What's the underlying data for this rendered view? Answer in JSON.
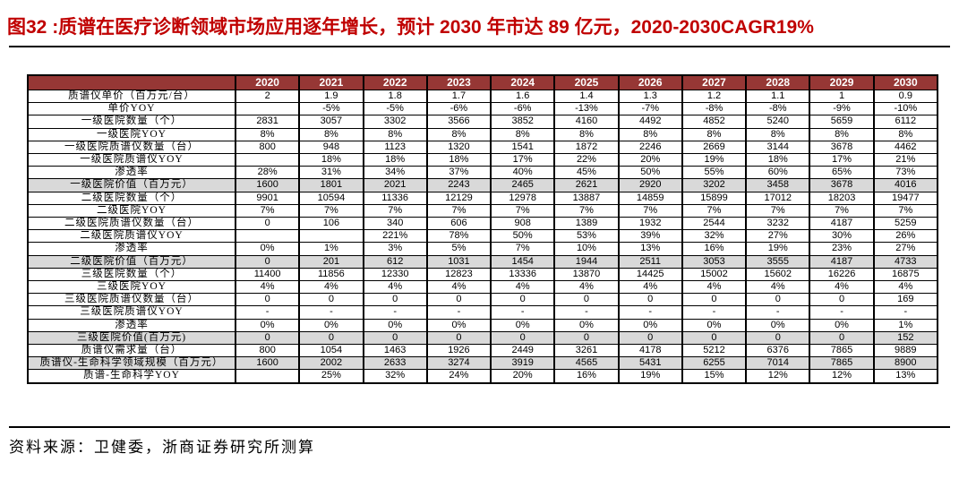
{
  "title": {
    "text": "图32 :质谱在医疗诊断领域市场应用逐年增长，预计 2030 年市达 89 亿元，2020-2030CAGR19%"
  },
  "footer": {
    "source": "资料来源：卫健委，浙商证券研究所测算"
  },
  "colors": {
    "title_red": "#C00000",
    "header_bg": "#963735",
    "header_text": "#FFFFFF",
    "shaded_row": "#D9D9D9",
    "border": "#000000"
  },
  "chart_data": {
    "type": "table",
    "title": "质谱在医疗诊断领域市场测算 2020-2030",
    "columns": [
      "2020",
      "2021",
      "2022",
      "2023",
      "2024",
      "2025",
      "2026",
      "2027",
      "2028",
      "2029",
      "2030"
    ],
    "rows": [
      {
        "label": "质谱仪单价（百万元/台）",
        "shaded": false,
        "values": [
          "2",
          "1.9",
          "1.8",
          "1.7",
          "1.6",
          "1.4",
          "1.3",
          "1.2",
          "1.1",
          "1",
          "0.9"
        ]
      },
      {
        "label": "单价YOY",
        "shaded": false,
        "values": [
          "",
          "-5%",
          "-5%",
          "-6%",
          "-6%",
          "-13%",
          "-7%",
          "-8%",
          "-8%",
          "-9%",
          "-10%"
        ]
      },
      {
        "label": "一级医院数量（个）",
        "shaded": false,
        "values": [
          "2831",
          "3057",
          "3302",
          "3566",
          "3852",
          "4160",
          "4492",
          "4852",
          "5240",
          "5659",
          "6112"
        ]
      },
      {
        "label": "一级医院YOY",
        "shaded": false,
        "values": [
          "8%",
          "8%",
          "8%",
          "8%",
          "8%",
          "8%",
          "8%",
          "8%",
          "8%",
          "8%",
          "8%"
        ]
      },
      {
        "label": "一级医院质谱仪数量（台）",
        "shaded": false,
        "values": [
          "800",
          "948",
          "1123",
          "1320",
          "1541",
          "1872",
          "2246",
          "2669",
          "3144",
          "3678",
          "4462"
        ]
      },
      {
        "label": "一级医院质谱仪YOY",
        "shaded": false,
        "values": [
          "",
          "18%",
          "18%",
          "18%",
          "17%",
          "22%",
          "20%",
          "19%",
          "18%",
          "17%",
          "21%"
        ]
      },
      {
        "label": "渗透率",
        "shaded": false,
        "values": [
          "28%",
          "31%",
          "34%",
          "37%",
          "40%",
          "45%",
          "50%",
          "55%",
          "60%",
          "65%",
          "73%"
        ]
      },
      {
        "label": "一级医院价值（百万元）",
        "shaded": true,
        "values": [
          "1600",
          "1801",
          "2021",
          "2243",
          "2465",
          "2621",
          "2920",
          "3202",
          "3458",
          "3678",
          "4016"
        ]
      },
      {
        "label": "二级医院数量（个）",
        "shaded": false,
        "values": [
          "9901",
          "10594",
          "11336",
          "12129",
          "12978",
          "13887",
          "14859",
          "15899",
          "17012",
          "18203",
          "19477"
        ]
      },
      {
        "label": "二级医院YOY",
        "shaded": false,
        "values": [
          "7%",
          "7%",
          "7%",
          "7%",
          "7%",
          "7%",
          "7%",
          "7%",
          "7%",
          "7%",
          "7%"
        ]
      },
      {
        "label": "二级医院质谱仪数量（台）",
        "shaded": false,
        "values": [
          "0",
          "106",
          "340",
          "606",
          "908",
          "1389",
          "1932",
          "2544",
          "3232",
          "4187",
          "5259"
        ]
      },
      {
        "label": "二级医院质谱仪YOY",
        "shaded": false,
        "values": [
          "",
          "",
          "221%",
          "78%",
          "50%",
          "53%",
          "39%",
          "32%",
          "27%",
          "30%",
          "26%"
        ]
      },
      {
        "label": "渗透率",
        "shaded": false,
        "values": [
          "0%",
          "1%",
          "3%",
          "5%",
          "7%",
          "10%",
          "13%",
          "16%",
          "19%",
          "23%",
          "27%"
        ]
      },
      {
        "label": "二级医院价值（百万元）",
        "shaded": true,
        "values": [
          "0",
          "201",
          "612",
          "1031",
          "1454",
          "1944",
          "2511",
          "3053",
          "3555",
          "4187",
          "4733"
        ]
      },
      {
        "label": "三级医院数量（个）",
        "shaded": false,
        "values": [
          "11400",
          "11856",
          "12330",
          "12823",
          "13336",
          "13870",
          "14425",
          "15002",
          "15602",
          "16226",
          "16875"
        ]
      },
      {
        "label": "三级医院YOY",
        "shaded": false,
        "values": [
          "4%",
          "4%",
          "4%",
          "4%",
          "4%",
          "4%",
          "4%",
          "4%",
          "4%",
          "4%",
          "4%"
        ]
      },
      {
        "label": "三级医院质谱仪数量（台）",
        "shaded": false,
        "values": [
          "0",
          "0",
          "0",
          "0",
          "0",
          "0",
          "0",
          "0",
          "0",
          "0",
          "169"
        ]
      },
      {
        "label": "三级医院质谱仪YOY",
        "shaded": false,
        "values": [
          "-",
          "-",
          "-",
          "-",
          "-",
          "-",
          "-",
          "-",
          "-",
          "-",
          "-"
        ]
      },
      {
        "label": "渗透率",
        "shaded": false,
        "values": [
          "0%",
          "0%",
          "0%",
          "0%",
          "0%",
          "0%",
          "0%",
          "0%",
          "0%",
          "0%",
          "1%"
        ]
      },
      {
        "label": "三级医院价值(百万元)",
        "shaded": true,
        "values": [
          "0",
          "0",
          "0",
          "0",
          "0",
          "0",
          "0",
          "0",
          "0",
          "0",
          "152"
        ]
      },
      {
        "label": "质谱仪需求量（台）",
        "shaded": false,
        "values": [
          "800",
          "1054",
          "1463",
          "1926",
          "2449",
          "3261",
          "4178",
          "5212",
          "6376",
          "7865",
          "9889"
        ]
      },
      {
        "label": "质谱仪-生命科学领域规模（百万元）",
        "shaded": true,
        "values": [
          "1600",
          "2002",
          "2633",
          "3274",
          "3919",
          "4565",
          "5431",
          "6255",
          "7014",
          "7865",
          "8900"
        ]
      },
      {
        "label": "质谱-生命科学YOY",
        "shaded": false,
        "values": [
          "",
          "25%",
          "32%",
          "24%",
          "20%",
          "16%",
          "19%",
          "15%",
          "12%",
          "12%",
          "13%"
        ]
      }
    ]
  }
}
